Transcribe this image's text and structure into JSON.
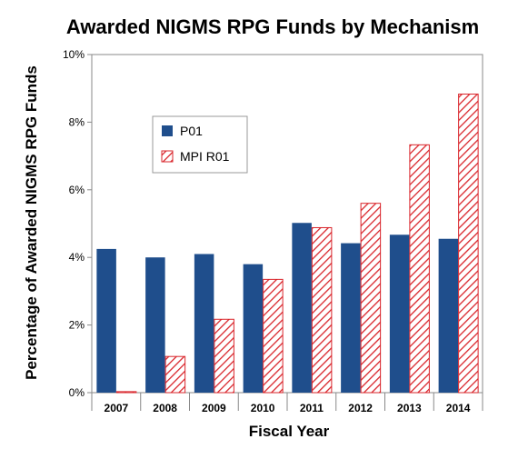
{
  "chart_data": {
    "type": "bar",
    "title": "Awarded NIGMS RPG Funds by Mechanism",
    "xlabel": "Fiscal Year",
    "ylabel": "Percentage of Awarded NIGMS RPG Funds",
    "categories": [
      "2007",
      "2008",
      "2009",
      "2010",
      "2011",
      "2012",
      "2013",
      "2014"
    ],
    "series": [
      {
        "name": "P01",
        "values": [
          4.25,
          4.0,
          4.1,
          3.8,
          5.02,
          4.42,
          4.67,
          4.55
        ],
        "color": "#1f4e8c",
        "fill": "solid"
      },
      {
        "name": "MPI R01",
        "values": [
          0.03,
          1.07,
          2.17,
          3.35,
          4.88,
          5.6,
          7.33,
          8.83
        ],
        "color": "#d9252b",
        "fill": "hatched"
      }
    ],
    "ylim": [
      0,
      10
    ],
    "yticks": [
      0,
      2,
      4,
      6,
      8,
      10
    ],
    "ytick_labels": [
      "0%",
      "2%",
      "4%",
      "6%",
      "8%",
      "10%"
    ],
    "grid": false,
    "legend": "top-left inside plot"
  }
}
